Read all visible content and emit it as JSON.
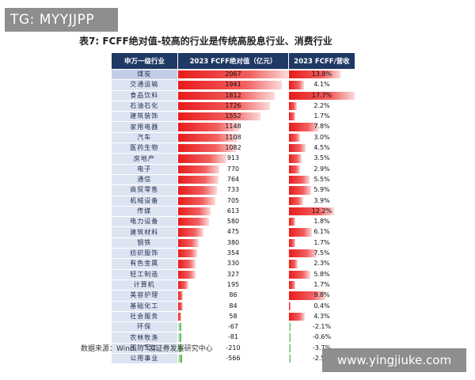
{
  "badge": "TG: MYYJJPP",
  "title": "表7: FCFF绝对值-较高的行业是传统高股息行业、消费行业",
  "headers": [
    "申万一级行业",
    "2023 FCFF绝对值（亿元）",
    "2023 FCFF/营收"
  ],
  "source": "数据来源：Wind、广发证券发展研究中心",
  "watermark": "www.yingjiuke.com",
  "colors": {
    "header_bg": "#1f3864",
    "positive": "#e81b1b",
    "negative": "#4bb04b",
    "industry_bg": "#dde4f2"
  },
  "rows": [
    {
      "industry": "煤炭",
      "fcff": "2067",
      "fcff_num": 2067,
      "ratio": "13.8%",
      "ratio_num": 13.8
    },
    {
      "industry": "交通运输",
      "fcff": "1941",
      "fcff_num": 1941,
      "ratio": "4.1%",
      "ratio_num": 4.1
    },
    {
      "industry": "食品饮料",
      "fcff": "1812",
      "fcff_num": 1812,
      "ratio": "17.7%",
      "ratio_num": 17.7
    },
    {
      "industry": "石油石化",
      "fcff": "1726",
      "fcff_num": 1726,
      "ratio": "2.2%",
      "ratio_num": 2.2
    },
    {
      "industry": "建筑装饰",
      "fcff": "1552",
      "fcff_num": 1552,
      "ratio": "1.7%",
      "ratio_num": 1.7
    },
    {
      "industry": "家用电器",
      "fcff": "1148",
      "fcff_num": 1148,
      "ratio": "7.8%",
      "ratio_num": 7.8
    },
    {
      "industry": "汽车",
      "fcff": "1108",
      "fcff_num": 1108,
      "ratio": "3.0%",
      "ratio_num": 3.0
    },
    {
      "industry": "医药生物",
      "fcff": "1082",
      "fcff_num": 1082,
      "ratio": "4.5%",
      "ratio_num": 4.5
    },
    {
      "industry": "房地产",
      "fcff": "913",
      "fcff_num": 913,
      "ratio": "3.5%",
      "ratio_num": 3.5
    },
    {
      "industry": "电子",
      "fcff": "770",
      "fcff_num": 770,
      "ratio": "2.9%",
      "ratio_num": 2.9
    },
    {
      "industry": "通信",
      "fcff": "764",
      "fcff_num": 764,
      "ratio": "5.5%",
      "ratio_num": 5.5
    },
    {
      "industry": "商贸零售",
      "fcff": "733",
      "fcff_num": 733,
      "ratio": "5.9%",
      "ratio_num": 5.9
    },
    {
      "industry": "机械设备",
      "fcff": "705",
      "fcff_num": 705,
      "ratio": "3.9%",
      "ratio_num": 3.9
    },
    {
      "industry": "传媒",
      "fcff": "613",
      "fcff_num": 613,
      "ratio": "12.2%",
      "ratio_num": 12.2
    },
    {
      "industry": "电力设备",
      "fcff": "580",
      "fcff_num": 580,
      "ratio": "1.8%",
      "ratio_num": 1.8
    },
    {
      "industry": "建筑材料",
      "fcff": "475",
      "fcff_num": 475,
      "ratio": "6.1%",
      "ratio_num": 6.1
    },
    {
      "industry": "钢铁",
      "fcff": "380",
      "fcff_num": 380,
      "ratio": "1.7%",
      "ratio_num": 1.7
    },
    {
      "industry": "纺织服饰",
      "fcff": "354",
      "fcff_num": 354,
      "ratio": "7.5%",
      "ratio_num": 7.5
    },
    {
      "industry": "有色金属",
      "fcff": "330",
      "fcff_num": 330,
      "ratio": "2.3%",
      "ratio_num": 2.3
    },
    {
      "industry": "轻工制造",
      "fcff": "327",
      "fcff_num": 327,
      "ratio": "5.8%",
      "ratio_num": 5.8
    },
    {
      "industry": "计算机",
      "fcff": "195",
      "fcff_num": 195,
      "ratio": "1.7%",
      "ratio_num": 1.7
    },
    {
      "industry": "美容护理",
      "fcff": "86",
      "fcff_num": 86,
      "ratio": "9.8%",
      "ratio_num": 9.8
    },
    {
      "industry": "基础化工",
      "fcff": "84",
      "fcff_num": 84,
      "ratio": "0.4%",
      "ratio_num": 0.4
    },
    {
      "industry": "社会服务",
      "fcff": "58",
      "fcff_num": 58,
      "ratio": "4.3%",
      "ratio_num": 4.3
    },
    {
      "industry": "环保",
      "fcff": "-67",
      "fcff_num": -67,
      "ratio": "-2.1%",
      "ratio_num": -2.1
    },
    {
      "industry": "农林牧渔",
      "fcff": "-81",
      "fcff_num": -81,
      "ratio": "-0.6%",
      "ratio_num": -0.6
    },
    {
      "industry": "国防军工",
      "fcff": "-210",
      "fcff_num": -210,
      "ratio": "-3.7%",
      "ratio_num": -3.7
    },
    {
      "industry": "公用事业",
      "fcff": "-566",
      "fcff_num": -566,
      "ratio": "-2.5%",
      "ratio_num": -2.5
    }
  ]
}
